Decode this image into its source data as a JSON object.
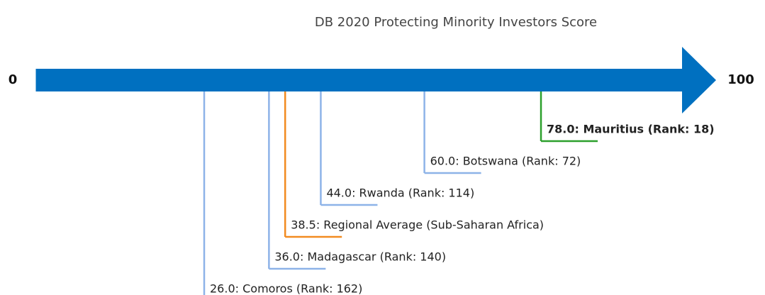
{
  "chart_data": {
    "type": "numberline",
    "title": "DB 2020 Protecting Minority Investors Score",
    "categories": [
      "26.0: Comoros (Rank: 162)",
      "36.0: Madagascar (Rank: 140)",
      "38.5: Regional Average (Sub-Saharan Africa)",
      "44.0: Rwanda (Rank: 114)",
      "60.0: Botswana (Rank: 72)",
      "78.0: Mauritius (Rank: 18)"
    ],
    "values": [
      26,
      36,
      38.5,
      44,
      60,
      78
    ],
    "colors": [
      "#8db3e8",
      "#8db3e8",
      "#f28b20",
      "#8db3e8",
      "#8db3e8",
      "#2ca02c"
    ],
    "highlight": [
      false,
      false,
      false,
      false,
      false,
      true
    ],
    "axis_color": "#0070c0",
    "xlim": [
      0,
      100
    ],
    "xticks": [
      0,
      100
    ]
  }
}
